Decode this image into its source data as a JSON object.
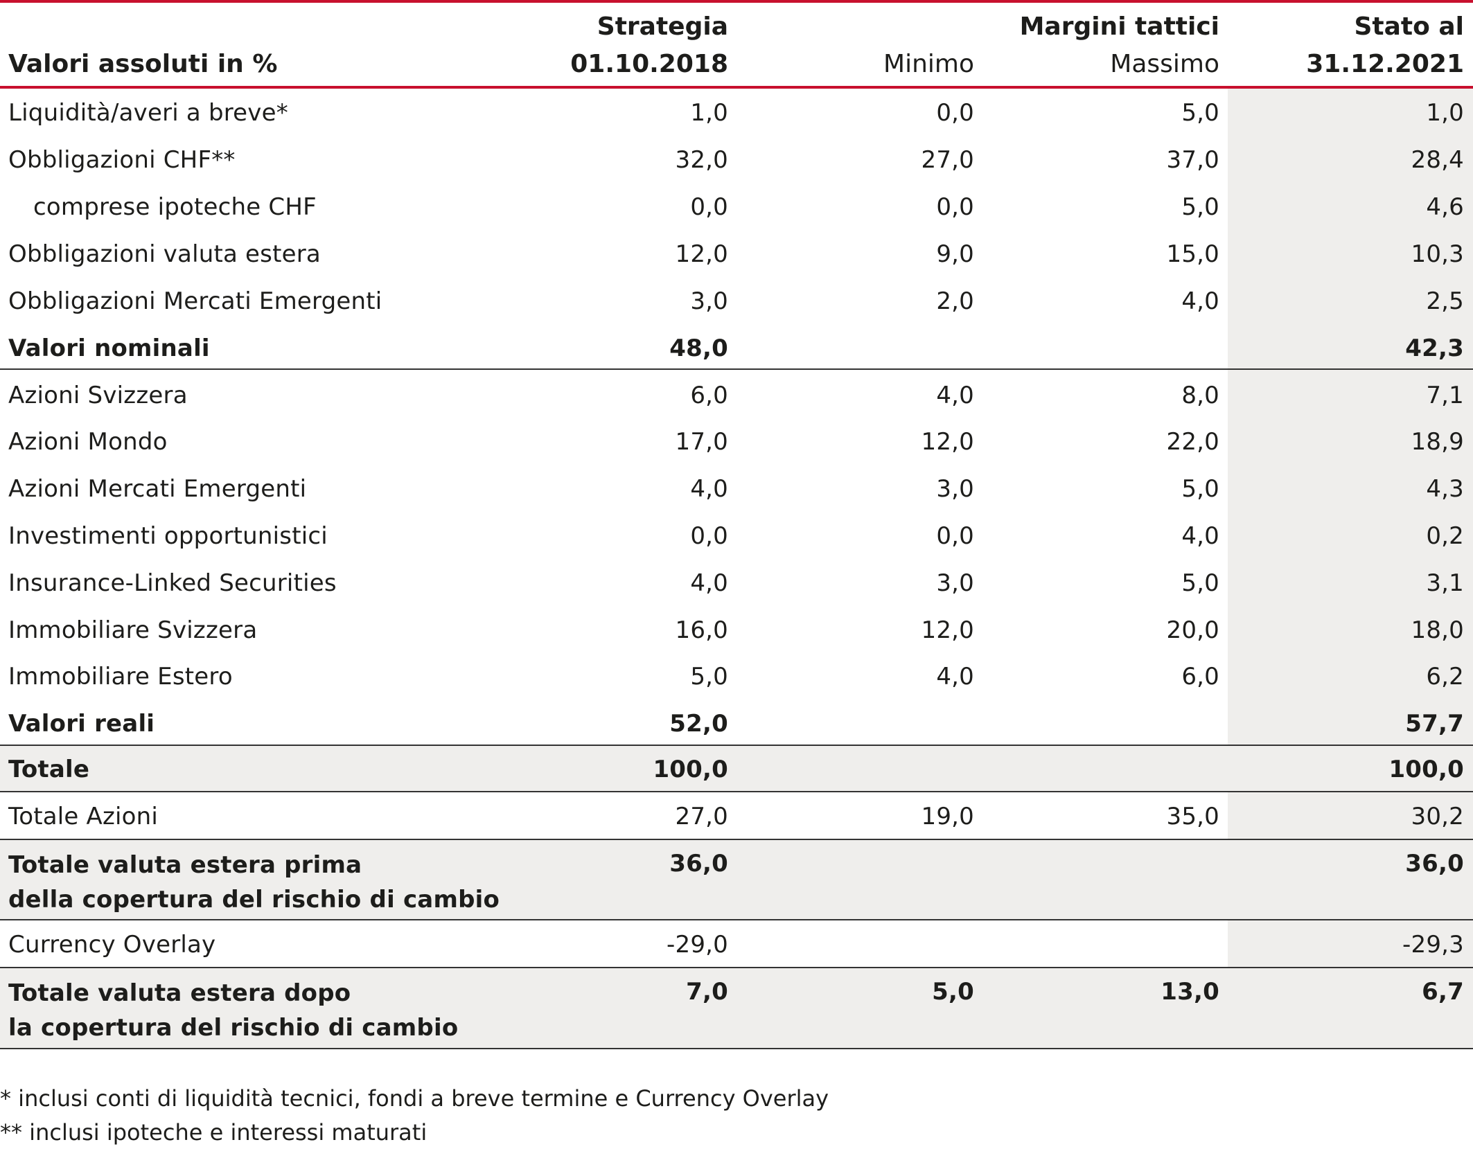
{
  "header": {
    "col0_label": "Valori assoluti in %",
    "col1_line1": "Strategia",
    "col1_line2": "01.10.2018",
    "col2_line2": "Minimo",
    "col3_line1": "Margini tattici",
    "col3_line2": "Massimo",
    "col4_line1": "Stato al",
    "col4_line2": "31.12.2021"
  },
  "rows": [
    {
      "label": "Liquidità/averi a breve*",
      "strategy": "1,0",
      "min": "0,0",
      "max": "5,0",
      "status": "1,0"
    },
    {
      "label": "Obbligazioni CHF**",
      "strategy": "32,0",
      "min": "27,0",
      "max": "37,0",
      "status": "28,4"
    },
    {
      "label": "comprese ipoteche CHF",
      "strategy": "0,0",
      "min": "0,0",
      "max": "5,0",
      "status": "4,6"
    },
    {
      "label": "Obbligazioni valuta estera",
      "strategy": "12,0",
      "min": "9,0",
      "max": "15,0",
      "status": "10,3"
    },
    {
      "label": "Obbligazioni Mercati Emergenti",
      "strategy": "3,0",
      "min": "2,0",
      "max": "4,0",
      "status": "2,5"
    },
    {
      "label": "Valori nominali",
      "strategy": "48,0",
      "min": "",
      "max": "",
      "status": "42,3"
    },
    {
      "label": "Azioni Svizzera",
      "strategy": "6,0",
      "min": "4,0",
      "max": "8,0",
      "status": "7,1"
    },
    {
      "label": "Azioni Mondo",
      "strategy": "17,0",
      "min": "12,0",
      "max": "22,0",
      "status": "18,9"
    },
    {
      "label": "Azioni Mercati Emergenti",
      "strategy": "4,0",
      "min": "3,0",
      "max": "5,0",
      "status": "4,3"
    },
    {
      "label": "Investimenti opportunistici",
      "strategy": "0,0",
      "min": "0,0",
      "max": "4,0",
      "status": "0,2"
    },
    {
      "label": "Insurance-Linked Securities",
      "strategy": "4,0",
      "min": "3,0",
      "max": "5,0",
      "status": "3,1"
    },
    {
      "label": "Immobiliare Svizzera",
      "strategy": "16,0",
      "min": "12,0",
      "max": "20,0",
      "status": "18,0"
    },
    {
      "label": "Immobiliare Estero",
      "strategy": "5,0",
      "min": "4,0",
      "max": "6,0",
      "status": "6,2"
    },
    {
      "label": "Valori reali",
      "strategy": "52,0",
      "min": "",
      "max": "",
      "status": "57,7"
    },
    {
      "label": "Totale",
      "strategy": "100,0",
      "min": "",
      "max": "",
      "status": "100,0"
    },
    {
      "label": "Totale Azioni",
      "strategy": "27,0",
      "min": "19,0",
      "max": "35,0",
      "status": "30,2"
    },
    {
      "label_line1": "Totale valuta estera prima",
      "label_line2": "della copertura del rischio di cambio",
      "strategy": "36,0",
      "min": "",
      "max": "",
      "status": "36,0"
    },
    {
      "label": "Currency Overlay",
      "strategy": "-29,0",
      "min": "",
      "max": "",
      "status": "-29,3"
    },
    {
      "label_line1": "Totale valuta estera dopo",
      "label_line2": "la copertura del rischio di cambio",
      "strategy": "7,0",
      "min": "5,0",
      "max": "13,0",
      "status": "6,7"
    }
  ],
  "footnotes": {
    "note1": "* inclusi conti di liquidità tecnici, fondi a breve termine e Currency Overlay",
    "note2": "** inclusi ipoteche e interessi maturati"
  },
  "colors": {
    "accent_red": "#c8102e",
    "shade_gray": "#efeeec",
    "text": "#1d1d1b"
  }
}
